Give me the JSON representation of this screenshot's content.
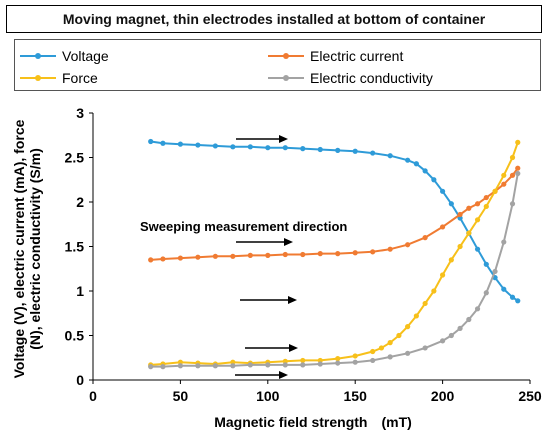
{
  "chart_data": {
    "type": "scatter",
    "title": "Moving magnet, thin electrodes installed at bottom of container",
    "xlabel": "Magnetic field strength　(mT)",
    "ylabel_lines": [
      "Voltage (V), electric current (mA), force",
      "(N), electric conductivity (S/m)"
    ],
    "xlim": [
      0,
      250
    ],
    "ylim": [
      0,
      3
    ],
    "x_ticks": [
      "0",
      "50",
      "100",
      "150",
      "200",
      "250"
    ],
    "y_ticks": [
      "0",
      "0.5",
      "1",
      "1.5",
      "2",
      "2.5",
      "3"
    ],
    "grid": false,
    "legend_placement": "top",
    "annotation": "Sweeping measurement direction",
    "series": [
      {
        "name": "Voltage",
        "color": "#2e9bd8",
        "x": [
          33,
          40,
          50,
          60,
          70,
          80,
          90,
          100,
          110,
          120,
          130,
          140,
          150,
          160,
          170,
          180,
          185,
          190,
          195,
          200,
          205,
          210,
          215,
          220,
          225,
          230,
          235,
          240,
          243
        ],
        "y": [
          2.68,
          2.66,
          2.65,
          2.64,
          2.63,
          2.62,
          2.62,
          2.61,
          2.61,
          2.6,
          2.59,
          2.58,
          2.57,
          2.55,
          2.52,
          2.47,
          2.43,
          2.35,
          2.25,
          2.12,
          1.98,
          1.82,
          1.65,
          1.47,
          1.3,
          1.15,
          1.02,
          0.93,
          0.89
        ]
      },
      {
        "name": "Electric current",
        "color": "#f07b32",
        "x": [
          33,
          40,
          50,
          60,
          70,
          80,
          90,
          100,
          110,
          120,
          130,
          140,
          150,
          160,
          170,
          180,
          190,
          200,
          210,
          215,
          220,
          225,
          230,
          235,
          240,
          243
        ],
        "y": [
          1.35,
          1.36,
          1.37,
          1.38,
          1.39,
          1.39,
          1.4,
          1.4,
          1.41,
          1.41,
          1.42,
          1.42,
          1.43,
          1.44,
          1.47,
          1.52,
          1.6,
          1.72,
          1.86,
          1.93,
          1.98,
          2.05,
          2.12,
          2.2,
          2.3,
          2.38
        ]
      },
      {
        "name": "Force",
        "color": "#f7c01a",
        "x": [
          33,
          40,
          50,
          60,
          70,
          80,
          90,
          100,
          110,
          120,
          130,
          140,
          150,
          160,
          165,
          170,
          175,
          180,
          185,
          190,
          195,
          200,
          205,
          210,
          215,
          220,
          225,
          230,
          235,
          240,
          243
        ],
        "y": [
          0.17,
          0.18,
          0.2,
          0.19,
          0.18,
          0.2,
          0.19,
          0.2,
          0.21,
          0.22,
          0.22,
          0.24,
          0.27,
          0.32,
          0.36,
          0.42,
          0.5,
          0.6,
          0.72,
          0.86,
          1.0,
          1.18,
          1.35,
          1.5,
          1.65,
          1.8,
          1.95,
          2.12,
          2.3,
          2.5,
          2.67
        ]
      },
      {
        "name": "Electric conductivity",
        "color": "#a3a3a3",
        "x": [
          33,
          40,
          50,
          60,
          70,
          80,
          90,
          100,
          110,
          120,
          130,
          140,
          150,
          160,
          170,
          180,
          190,
          200,
          205,
          210,
          215,
          220,
          225,
          230,
          235,
          240,
          243
        ],
        "y": [
          0.15,
          0.15,
          0.16,
          0.16,
          0.16,
          0.16,
          0.17,
          0.17,
          0.17,
          0.17,
          0.18,
          0.19,
          0.2,
          0.22,
          0.26,
          0.3,
          0.36,
          0.44,
          0.5,
          0.58,
          0.68,
          0.8,
          0.98,
          1.22,
          1.55,
          1.98,
          2.32
        ]
      }
    ]
  }
}
